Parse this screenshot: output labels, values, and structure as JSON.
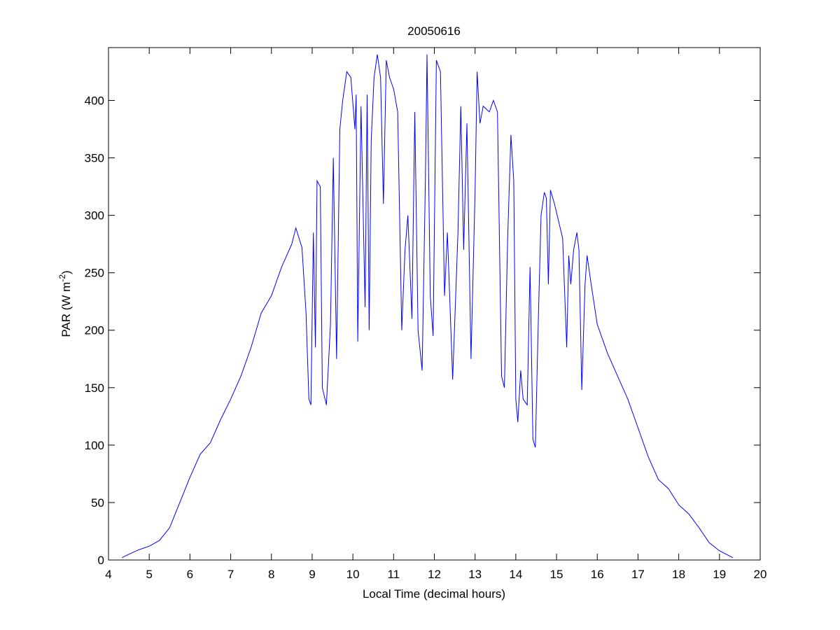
{
  "chart_data": {
    "type": "line",
    "title": "20050616",
    "xlabel": "Local Time (decimal hours)",
    "ylabel": "PAR (W m",
    "ylabel_superscript": "-2",
    "ylabel_end": ")",
    "xlim": [
      4,
      20
    ],
    "xticks": [
      4,
      5,
      6,
      7,
      8,
      9,
      10,
      11,
      12,
      13,
      14,
      15,
      16,
      17,
      18,
      19,
      20
    ],
    "ylim": [
      0,
      446
    ],
    "yticks": [
      0,
      50,
      100,
      150,
      200,
      250,
      300,
      350,
      400
    ],
    "grid": false,
    "series": [
      {
        "color": "#0000ff",
        "x": [
          4.33,
          4.5,
          4.75,
          5,
          5.25,
          5.5,
          5.75,
          6,
          6.25,
          6.5,
          6.75,
          7,
          7.25,
          7.5,
          7.75,
          8,
          8.25,
          8.5,
          8.6,
          8.75,
          8.85,
          8.92,
          8.97,
          9.03,
          9.08,
          9.12,
          9.2,
          9.25,
          9.35,
          9.45,
          9.52,
          9.6,
          9.68,
          9.75,
          9.85,
          9.95,
          10.05,
          10.08,
          10.12,
          10.2,
          10.3,
          10.35,
          10.4,
          10.45,
          10.52,
          10.6,
          10.68,
          10.75,
          10.82,
          10.9,
          11,
          11.1,
          11.2,
          11.28,
          11.35,
          11.45,
          11.52,
          11.6,
          11.7,
          11.78,
          11.82,
          11.9,
          11.97,
          12.05,
          12.15,
          12.25,
          12.32,
          12.45,
          12.58,
          12.65,
          12.72,
          12.8,
          12.9,
          13,
          13.05,
          13.12,
          13.2,
          13.35,
          13.45,
          13.55,
          13.65,
          13.72,
          13.8,
          13.88,
          13.95,
          14,
          14.05,
          14.12,
          14.18,
          14.28,
          14.35,
          14.42,
          14.48,
          14.55,
          14.62,
          14.7,
          14.75,
          14.8,
          14.85,
          14.95,
          15.05,
          15.15,
          15.25,
          15.3,
          15.35,
          15.42,
          15.5,
          15.55,
          15.62,
          15.7,
          15.75,
          15.85,
          16,
          16.25,
          16.5,
          16.75,
          17,
          17.25,
          17.5,
          17.75,
          18,
          18.25,
          18.5,
          18.75,
          19,
          19.33
        ],
        "values": [
          2,
          5,
          9,
          12,
          17,
          28,
          50,
          72,
          92,
          102,
          122,
          140,
          160,
          185,
          215,
          230,
          255,
          275,
          289,
          272,
          215,
          140,
          135,
          285,
          185,
          330,
          325,
          150,
          135,
          205,
          350,
          175,
          375,
          400,
          425,
          420,
          375,
          405,
          190,
          395,
          220,
          405,
          200,
          365,
          420,
          440,
          420,
          310,
          435,
          420,
          410,
          390,
          200,
          270,
          300,
          210,
          390,
          200,
          165,
          330,
          440,
          230,
          195,
          435,
          425,
          230,
          285,
          157,
          285,
          395,
          270,
          380,
          175,
          320,
          425,
          380,
          395,
          390,
          400,
          390,
          160,
          150,
          280,
          370,
          330,
          140,
          120,
          165,
          140,
          135,
          255,
          105,
          98,
          205,
          300,
          320,
          315,
          240,
          322,
          310,
          295,
          280,
          185,
          265,
          240,
          270,
          285,
          270,
          148,
          240,
          265,
          240,
          205,
          180,
          160,
          140,
          115,
          90,
          70,
          62,
          48,
          40,
          28,
          15,
          8,
          2
        ]
      }
    ]
  }
}
